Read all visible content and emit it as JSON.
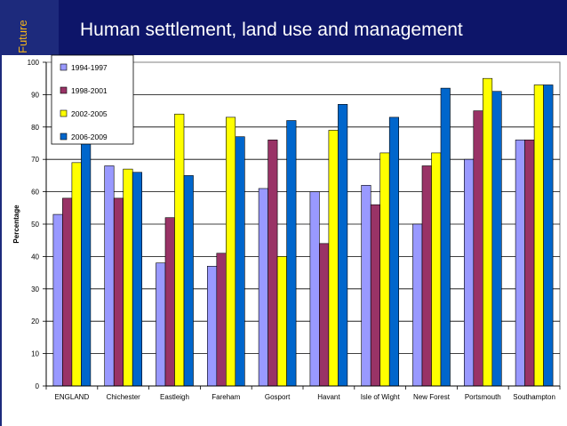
{
  "header": {
    "side_text": "Future",
    "title": "Human settlement, land use and management"
  },
  "colors": {
    "header_bg": "#0d1569",
    "side_block": "#1d2a7c",
    "side_text": "#f3b51c"
  },
  "chart_data": {
    "type": "bar",
    "title": "",
    "xlabel": "",
    "ylabel": "Percentage",
    "ylim": [
      0,
      100
    ],
    "yticks": [
      0,
      10,
      20,
      30,
      40,
      50,
      60,
      70,
      80,
      90,
      100
    ],
    "grid": true,
    "legend_position": "top-left",
    "categories": [
      "ENGLAND",
      "Chichester",
      "Eastleigh",
      "Fareham",
      "Gosport",
      "Havant",
      "Isle of Wight",
      "New Forest",
      "Portsmouth",
      "Southampton"
    ],
    "series": [
      {
        "name": "1994-1997",
        "color": "#9999ff",
        "values": [
          53,
          68,
          38,
          37,
          61,
          60,
          62,
          50,
          70,
          76
        ]
      },
      {
        "name": "1998-2001",
        "color": "#993366",
        "values": [
          58,
          58,
          52,
          41,
          76,
          44,
          56,
          68,
          85,
          76
        ]
      },
      {
        "name": "2002-2005",
        "color": "#ffff00",
        "values": [
          69,
          67,
          84,
          83,
          40,
          79,
          72,
          72,
          95,
          93
        ]
      },
      {
        "name": "2006-2009",
        "color": "#0066cc",
        "values": [
          76,
          66,
          65,
          77,
          82,
          87,
          83,
          92,
          91,
          93
        ]
      }
    ]
  }
}
